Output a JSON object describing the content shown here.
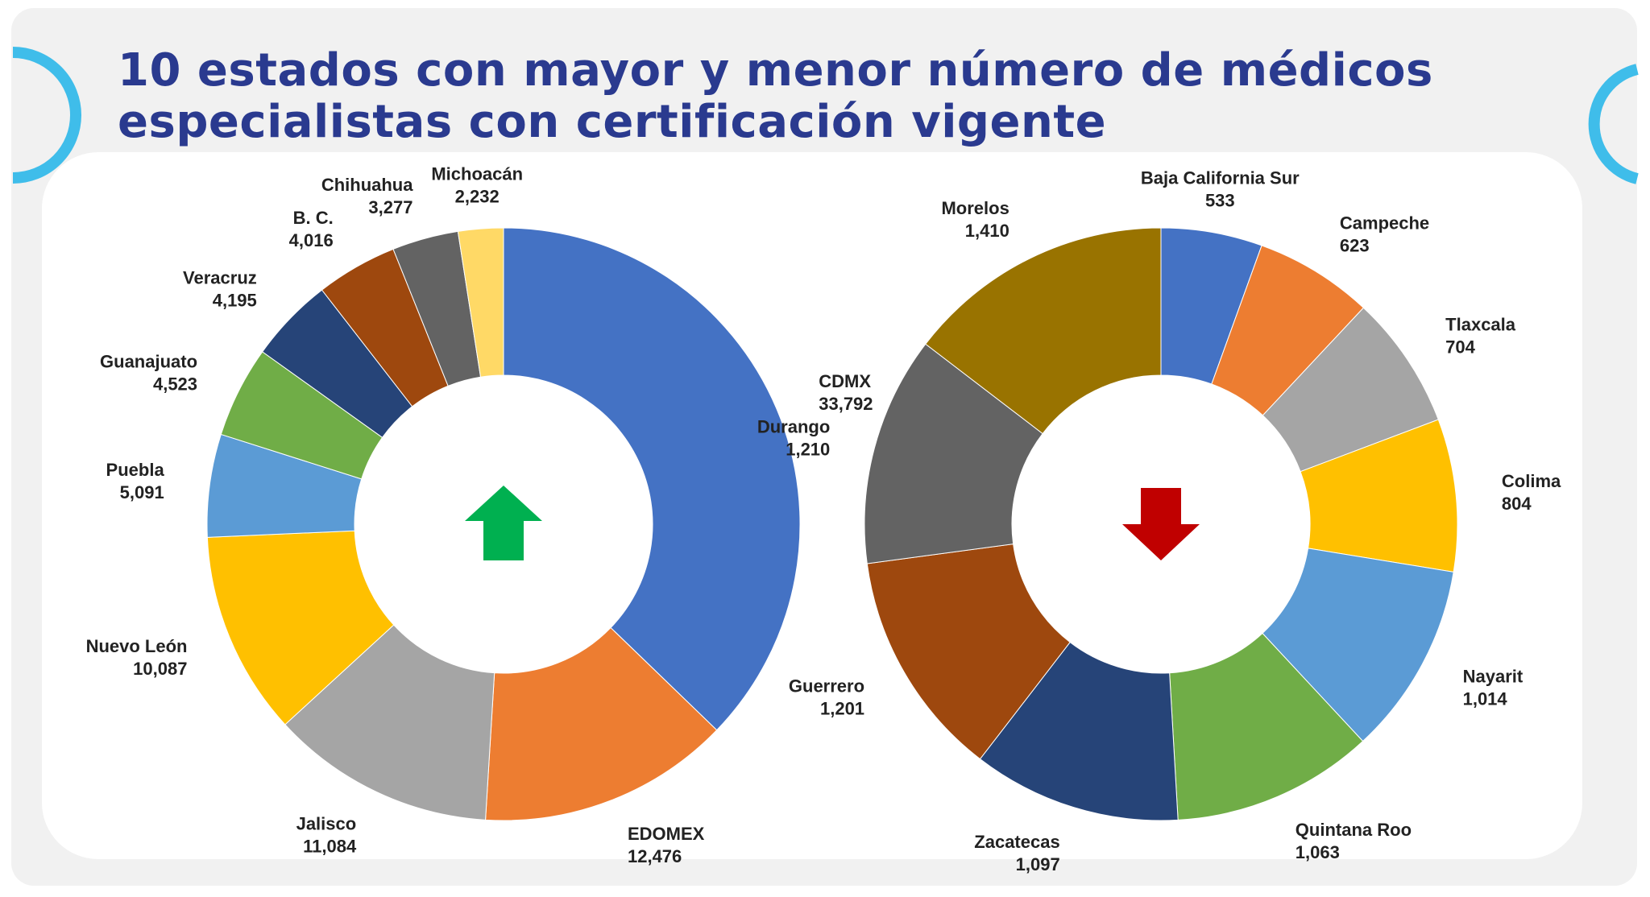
{
  "title": {
    "line1": "10 estados con mayor y menor número de médicos",
    "line2": "especialistas con certificación vigente"
  },
  "colors": {
    "title": "#2a3a8f",
    "decor_arc": "#3fbdea",
    "up_arrow": "#00b050",
    "down_arrow": "#c00000"
  },
  "icons": {
    "left_chart_center": "up-arrow-icon",
    "right_chart_center": "down-arrow-icon"
  },
  "chart_data": [
    {
      "type": "pie",
      "variant": "donut",
      "center_icon": "green up arrow",
      "categories": [
        "CDMX",
        "EDOMEX",
        "Jalisco",
        "Nuevo León",
        "Puebla",
        "Guanajuato",
        "Veracruz",
        "B. C.",
        "Chihuahua",
        "Michoacán"
      ],
      "values": [
        33792,
        12476,
        11084,
        10087,
        5091,
        4523,
        4195,
        4016,
        3277,
        2232
      ],
      "value_labels": [
        "33,792",
        "12,476",
        "11,084",
        "10,087",
        "5,091",
        "4,523",
        "4,195",
        "4,016",
        "3,277",
        "2,232"
      ],
      "colors": [
        "#4472c4",
        "#ed7d31",
        "#a5a5a5",
        "#ffc000",
        "#5b9bd5",
        "#70ad47",
        "#264478",
        "#9e480e",
        "#636363",
        "#ffd966"
      ]
    },
    {
      "type": "pie",
      "variant": "donut",
      "center_icon": "red down arrow",
      "categories": [
        "Baja California Sur",
        "Campeche",
        "Tlaxcala",
        "Colima",
        "Nayarit",
        "Quintana Roo",
        "Zacatecas",
        "Guerrero",
        "Durango",
        "Morelos"
      ],
      "values": [
        533,
        623,
        704,
        804,
        1014,
        1063,
        1097,
        1201,
        1210,
        1410
      ],
      "value_labels": [
        "533",
        "623",
        "704",
        "804",
        "1,014",
        "1,063",
        "1,097",
        "1,201",
        "1,210",
        "1,410"
      ],
      "colors": [
        "#4472c4",
        "#ed7d31",
        "#a5a5a5",
        "#ffc000",
        "#5b9bd5",
        "#70ad47",
        "#264478",
        "#9e480e",
        "#636363",
        "#997300"
      ]
    }
  ]
}
